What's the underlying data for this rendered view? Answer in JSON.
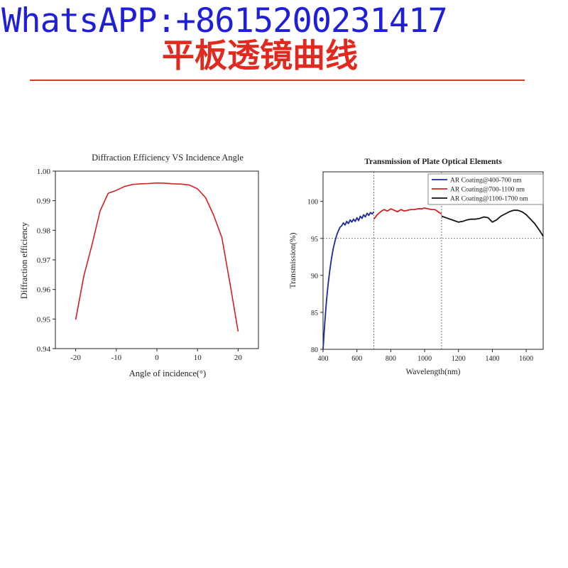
{
  "watermark": "WhatsAPP:+8615200231417",
  "page_title": "平板透镜曲线",
  "colors": {
    "watermark": "#1f1fd8",
    "title": "#e02a20",
    "rule": "#d63a2e"
  },
  "chart_data": [
    {
      "type": "line",
      "title": "Diffraction Efficiency VS Incidence Angle",
      "xlabel": "Angle of incidence(°)",
      "ylabel": "Diffraction efficiency",
      "xlim": [
        -25,
        25
      ],
      "ylim": [
        0.94,
        1.0
      ],
      "xticks": [
        -20,
        -10,
        0,
        10,
        20
      ],
      "yticks": [
        0.94,
        0.95,
        0.96,
        0.97,
        0.98,
        0.99,
        1.0
      ],
      "ytick_labels": [
        "0.94",
        "0.95",
        "0.96",
        "0.97",
        "0.98",
        "0.99",
        "1.00"
      ],
      "grid": false,
      "series": [
        {
          "color": "#d42020",
          "x": [
            -20,
            -18,
            -16,
            -14,
            -12,
            -10,
            -8,
            -6,
            -4,
            -2,
            0,
            2,
            4,
            6,
            8,
            10,
            12,
            14,
            16,
            18,
            20
          ],
          "y": [
            0.9498,
            0.9645,
            0.975,
            0.9865,
            0.9925,
            0.9935,
            0.9948,
            0.9955,
            0.9957,
            0.9958,
            0.996,
            0.9959,
            0.9957,
            0.9956,
            0.9953,
            0.994,
            0.991,
            0.985,
            0.9775,
            0.962,
            0.9458
          ]
        }
      ]
    },
    {
      "type": "line",
      "title": "Transmission of Plate Optical Elements",
      "xlabel": "Wavelength(nm)",
      "ylabel": "Transmission(%)",
      "xlim": [
        400,
        1700
      ],
      "ylim": [
        80,
        104
      ],
      "xticks": [
        400,
        600,
        800,
        1000,
        1200,
        1400,
        1600
      ],
      "yticks": [
        80,
        85,
        90,
        95,
        100
      ],
      "grid": false,
      "legend_position": "top-right",
      "reference_lines": {
        "vertical": [
          700,
          1100
        ],
        "horizontal": [
          95
        ]
      },
      "series": [
        {
          "name": "AR Coating@400-700 nm",
          "color": "#1a2a9c",
          "x": [
            400,
            410,
            420,
            430,
            440,
            450,
            460,
            470,
            480,
            490,
            500,
            510,
            520,
            530,
            540,
            550,
            560,
            570,
            580,
            590,
            600,
            610,
            620,
            630,
            640,
            650,
            660,
            670,
            680,
            690,
            700
          ],
          "y": [
            80.0,
            83.5,
            86.5,
            88.8,
            90.7,
            92.3,
            93.6,
            94.6,
            95.4,
            96.0,
            96.5,
            96.7,
            97.1,
            96.8,
            97.3,
            97.0,
            97.5,
            97.2,
            97.6,
            97.3,
            97.8,
            97.4,
            98.0,
            97.7,
            98.2,
            97.9,
            98.4,
            98.1,
            98.5,
            98.3,
            98.6
          ]
        },
        {
          "name": "AR Coating@700-1100 nm",
          "color": "#d42020",
          "x": [
            700,
            720,
            740,
            760,
            780,
            800,
            820,
            840,
            860,
            880,
            900,
            920,
            940,
            960,
            980,
            1000,
            1020,
            1040,
            1060,
            1080,
            1100
          ],
          "y": [
            97.6,
            98.2,
            98.6,
            98.9,
            98.7,
            99.0,
            98.8,
            98.6,
            98.9,
            98.7,
            98.8,
            98.9,
            98.9,
            99.0,
            99.0,
            99.1,
            99.0,
            98.9,
            98.9,
            98.6,
            98.3
          ]
        },
        {
          "name": "AR Coating@1100-1700 nm",
          "color": "#111111",
          "x": [
            1100,
            1125,
            1150,
            1175,
            1200,
            1225,
            1250,
            1275,
            1300,
            1325,
            1350,
            1375,
            1400,
            1425,
            1450,
            1475,
            1500,
            1525,
            1550,
            1575,
            1600,
            1625,
            1650,
            1675,
            1700
          ],
          "y": [
            98.0,
            97.8,
            97.6,
            97.4,
            97.2,
            97.3,
            97.5,
            97.6,
            97.6,
            97.7,
            97.9,
            97.8,
            97.2,
            97.5,
            98.0,
            98.3,
            98.6,
            98.8,
            98.8,
            98.6,
            98.2,
            97.6,
            97.0,
            96.2,
            95.3
          ]
        }
      ]
    }
  ]
}
